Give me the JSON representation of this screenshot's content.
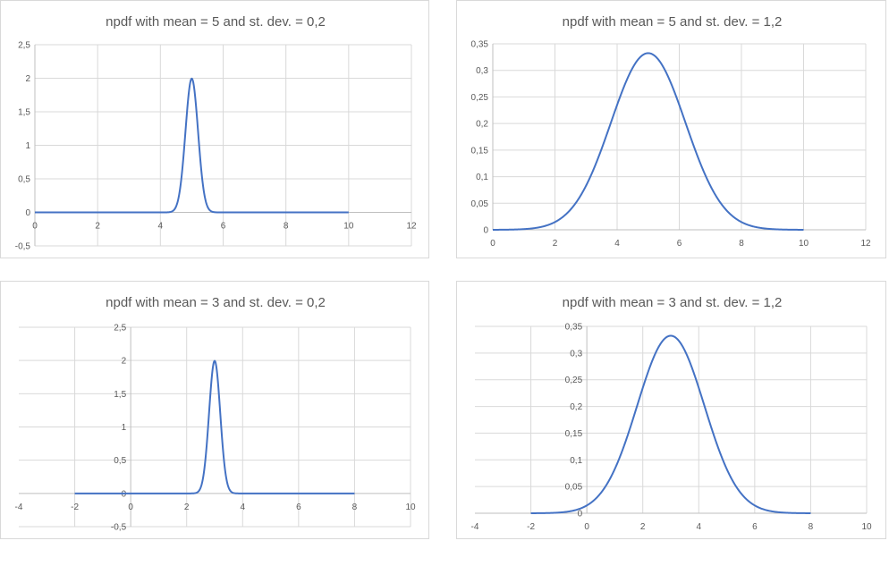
{
  "chart_data": [
    {
      "type": "line",
      "title": "npdf with mean = 5 and st. dev. = 0,2",
      "mean": 5,
      "sd": 0.2,
      "x_range": [
        0,
        10
      ],
      "xlim": [
        0,
        12
      ],
      "ylim": [
        -0.5,
        2.5
      ],
      "x_ticks": [
        0,
        2,
        4,
        6,
        8,
        10,
        12
      ],
      "x_tick_labels": [
        "0",
        "2",
        "4",
        "6",
        "8",
        "10",
        "12"
      ],
      "y_ticks": [
        -0.5,
        0,
        0.5,
        1,
        1.5,
        2,
        2.5
      ],
      "y_tick_labels": [
        "-0,5",
        "0",
        "0,5",
        "1",
        "1,5",
        "2",
        "2,5"
      ],
      "series": [
        {
          "color": "#4472c4"
        }
      ],
      "grid": true
    },
    {
      "type": "line",
      "title": "npdf with mean = 5 and st. dev. = 1,2",
      "mean": 5,
      "sd": 1.2,
      "x_range": [
        0,
        10
      ],
      "xlim": [
        0,
        12
      ],
      "ylim": [
        0,
        0.35
      ],
      "x_ticks": [
        0,
        2,
        4,
        6,
        8,
        10,
        12
      ],
      "x_tick_labels": [
        "0",
        "2",
        "4",
        "6",
        "8",
        "10",
        "12"
      ],
      "y_ticks": [
        0,
        0.05,
        0.1,
        0.15,
        0.2,
        0.25,
        0.3,
        0.35
      ],
      "y_tick_labels": [
        "0",
        "0,05",
        "0,1",
        "0,15",
        "0,2",
        "0,25",
        "0,3",
        "0,35"
      ],
      "series": [
        {
          "color": "#4472c4"
        }
      ],
      "grid": true
    },
    {
      "type": "line",
      "title": "npdf with mean = 3 and st. dev. = 0,2",
      "mean": 3,
      "sd": 0.2,
      "x_range": [
        -2,
        8
      ],
      "xlim": [
        -4,
        10
      ],
      "ylim": [
        -0.5,
        2.5
      ],
      "x_ticks": [
        -4,
        -2,
        0,
        2,
        4,
        6,
        8,
        10
      ],
      "x_tick_labels": [
        "-4",
        "-2",
        "0",
        "2",
        "4",
        "6",
        "8",
        "10"
      ],
      "y_ticks": [
        -0.5,
        0,
        0.5,
        1,
        1.5,
        2,
        2.5
      ],
      "y_tick_labels": [
        "-0,5",
        "0",
        "0,5",
        "1",
        "1,5",
        "2",
        "2,5"
      ],
      "series": [
        {
          "color": "#4472c4"
        }
      ],
      "grid": true
    },
    {
      "type": "line",
      "title": "npdf with mean = 3 and st. dev. = 1,2",
      "mean": 3,
      "sd": 1.2,
      "x_range": [
        -2,
        8
      ],
      "xlim": [
        -4,
        10
      ],
      "ylim": [
        0,
        0.35
      ],
      "x_ticks": [
        -4,
        -2,
        0,
        2,
        4,
        6,
        8,
        10
      ],
      "x_tick_labels": [
        "-4",
        "-2",
        "0",
        "2",
        "4",
        "6",
        "8",
        "10"
      ],
      "y_ticks": [
        0,
        0.05,
        0.1,
        0.15,
        0.2,
        0.25,
        0.3,
        0.35
      ],
      "y_tick_labels": [
        "0",
        "0,05",
        "0,1",
        "0,15",
        "0,2",
        "0,25",
        "0,3",
        "0,35"
      ],
      "series": [
        {
          "color": "#4472c4"
        }
      ],
      "grid": true
    }
  ]
}
